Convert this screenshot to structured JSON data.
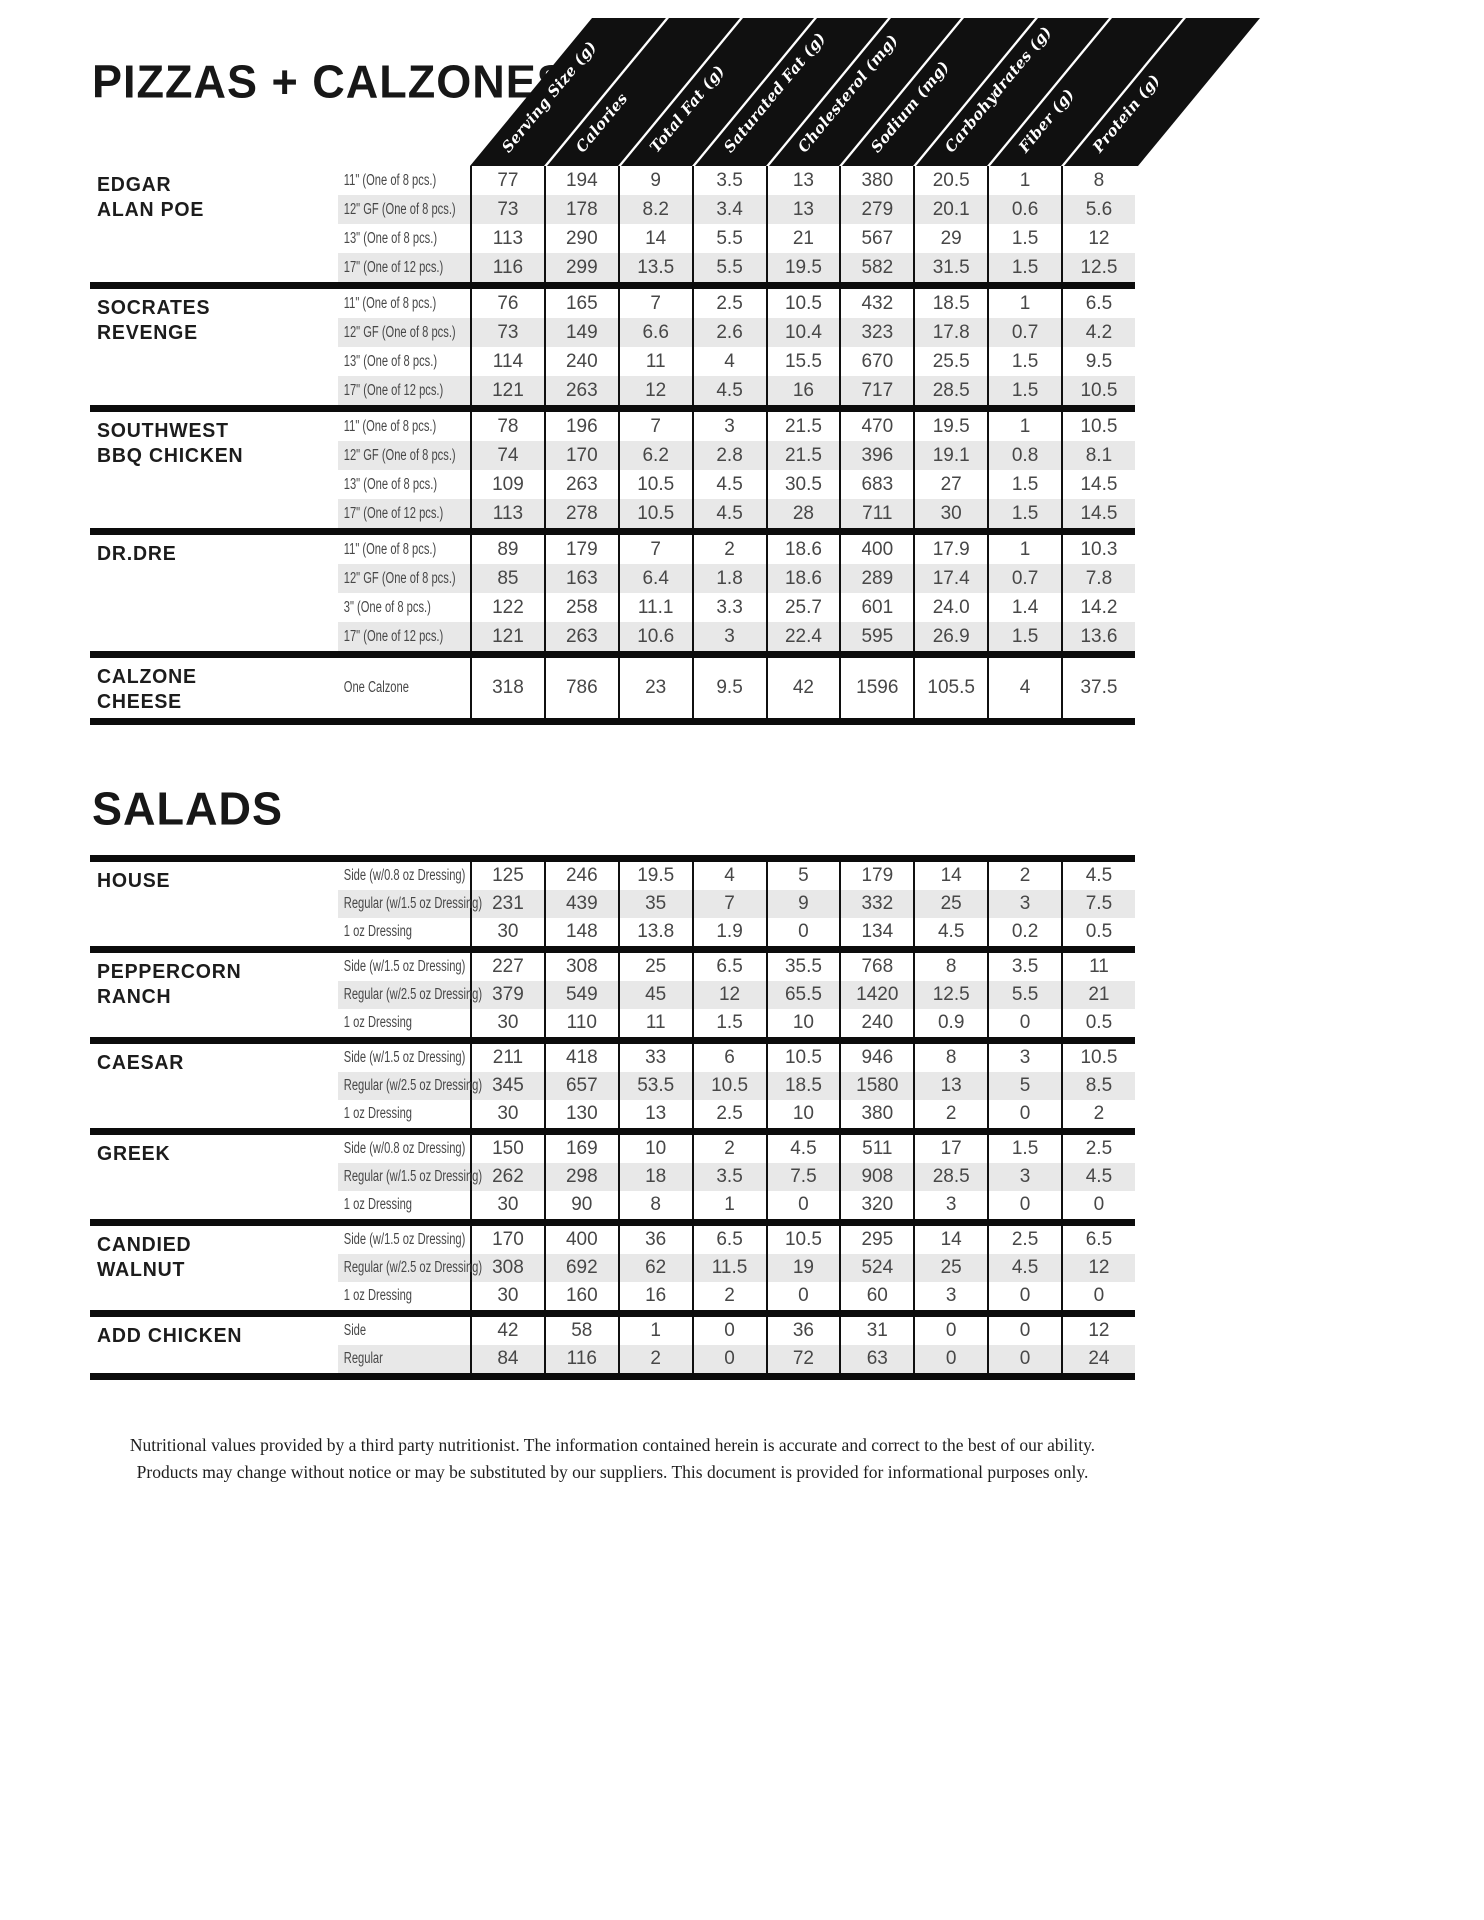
{
  "pizzas": {
    "title": "PIZZAS + CALZONES",
    "columns": [
      "Serving Size (g)",
      "Calories",
      "Total Fat (g)",
      "Saturated Fat (g)",
      "Cholesterol (mg)",
      "Sodium (mg)",
      "Carbohydrates (g)",
      "Fiber (g)",
      "Protein (g)"
    ],
    "groups": [
      {
        "name": "EDGAR\nALAN POE",
        "rows": [
          {
            "label": "11\" (One of 8 pcs.)",
            "values": [
              "77",
              "194",
              "9",
              "3.5",
              "13",
              "380",
              "20.5",
              "1",
              "8"
            ]
          },
          {
            "label": "12\" GF (One of 8 pcs.)",
            "values": [
              "73",
              "178",
              "8.2",
              "3.4",
              "13",
              "279",
              "20.1",
              "0.6",
              "5.6"
            ]
          },
          {
            "label": "13\" (One of 8 pcs.)",
            "values": [
              "113",
              "290",
              "14",
              "5.5",
              "21",
              "567",
              "29",
              "1.5",
              "12"
            ]
          },
          {
            "label": "17\" (One of 12 pcs.)",
            "values": [
              "116",
              "299",
              "13.5",
              "5.5",
              "19.5",
              "582",
              "31.5",
              "1.5",
              "12.5"
            ]
          }
        ]
      },
      {
        "name": "SOCRATES\nREVENGE",
        "rows": [
          {
            "label": "11\" (One of 8 pcs.)",
            "values": [
              "76",
              "165",
              "7",
              "2.5",
              "10.5",
              "432",
              "18.5",
              "1",
              "6.5"
            ]
          },
          {
            "label": "12\" GF (One of 8 pcs.)",
            "values": [
              "73",
              "149",
              "6.6",
              "2.6",
              "10.4",
              "323",
              "17.8",
              "0.7",
              "4.2"
            ]
          },
          {
            "label": "13\" (One of 8 pcs.)",
            "values": [
              "114",
              "240",
              "11",
              "4",
              "15.5",
              "670",
              "25.5",
              "1.5",
              "9.5"
            ]
          },
          {
            "label": "17\" (One of 12 pcs.)",
            "values": [
              "121",
              "263",
              "12",
              "4.5",
              "16",
              "717",
              "28.5",
              "1.5",
              "10.5"
            ]
          }
        ]
      },
      {
        "name": "SOUTHWEST\nBBQ CHICKEN",
        "rows": [
          {
            "label": "11\" (One of 8 pcs.)",
            "values": [
              "78",
              "196",
              "7",
              "3",
              "21.5",
              "470",
              "19.5",
              "1",
              "10.5"
            ]
          },
          {
            "label": "12\" GF (One of 8 pcs.)",
            "values": [
              "74",
              "170",
              "6.2",
              "2.8",
              "21.5",
              "396",
              "19.1",
              "0.8",
              "8.1"
            ]
          },
          {
            "label": "13\" (One of 8 pcs.)",
            "values": [
              "109",
              "263",
              "10.5",
              "4.5",
              "30.5",
              "683",
              "27",
              "1.5",
              "14.5"
            ]
          },
          {
            "label": "17\" (One of 12 pcs.)",
            "values": [
              "113",
              "278",
              "10.5",
              "4.5",
              "28",
              "711",
              "30",
              "1.5",
              "14.5"
            ]
          }
        ]
      },
      {
        "name": "DR.DRE",
        "rows": [
          {
            "label": "11\" (One of 8 pcs.)",
            "values": [
              "89",
              "179",
              "7",
              "2",
              "18.6",
              "400",
              "17.9",
              "1",
              "10.3"
            ]
          },
          {
            "label": "12\" GF (One of 8 pcs.)",
            "values": [
              "85",
              "163",
              "6.4",
              "1.8",
              "18.6",
              "289",
              "17.4",
              "0.7",
              "7.8"
            ]
          },
          {
            "label": "3\" (One of 8 pcs.)",
            "values": [
              "122",
              "258",
              "11.1",
              "3.3",
              "25.7",
              "601",
              "24.0",
              "1.4",
              "14.2"
            ]
          },
          {
            "label": "17\" (One of 12 pcs.)",
            "values": [
              "121",
              "263",
              "10.6",
              "3",
              "22.4",
              "595",
              "26.9",
              "1.5",
              "13.6"
            ]
          }
        ]
      },
      {
        "name": "CALZONE\nCHEESE",
        "rows": [
          {
            "label": "One Calzone",
            "tall": true,
            "values": [
              "318",
              "786",
              "23",
              "9.5",
              "42",
              "1596",
              "105.5",
              "4",
              "37.5"
            ]
          }
        ]
      }
    ]
  },
  "salads": {
    "title": "SALADS",
    "groups": [
      {
        "name": "HOUSE",
        "rows": [
          {
            "label": "Side (w/0.8 oz Dressing)",
            "values": [
              "125",
              "246",
              "19.5",
              "4",
              "5",
              "179",
              "14",
              "2",
              "4.5"
            ]
          },
          {
            "label": "Regular (w/1.5 oz Dressing)",
            "values": [
              "231",
              "439",
              "35",
              "7",
              "9",
              "332",
              "25",
              "3",
              "7.5"
            ]
          },
          {
            "label": "1 oz Dressing",
            "values": [
              "30",
              "148",
              "13.8",
              "1.9",
              "0",
              "134",
              "4.5",
              "0.2",
              "0.5"
            ]
          }
        ]
      },
      {
        "name": "PEPPERCORN\nRANCH",
        "rows": [
          {
            "label": "Side (w/1.5 oz Dressing)",
            "values": [
              "227",
              "308",
              "25",
              "6.5",
              "35.5",
              "768",
              "8",
              "3.5",
              "11"
            ]
          },
          {
            "label": "Regular (w/2.5 oz Dressing)",
            "values": [
              "379",
              "549",
              "45",
              "12",
              "65.5",
              "1420",
              "12.5",
              "5.5",
              "21"
            ]
          },
          {
            "label": "1 oz Dressing",
            "values": [
              "30",
              "110",
              "11",
              "1.5",
              "10",
              "240",
              "0.9",
              "0",
              "0.5"
            ]
          }
        ]
      },
      {
        "name": "CAESAR",
        "rows": [
          {
            "label": "Side (w/1.5 oz Dressing)",
            "values": [
              "211",
              "418",
              "33",
              "6",
              "10.5",
              "946",
              "8",
              "3",
              "10.5"
            ]
          },
          {
            "label": "Regular (w/2.5 oz Dressing)",
            "values": [
              "345",
              "657",
              "53.5",
              "10.5",
              "18.5",
              "1580",
              "13",
              "5",
              "8.5"
            ]
          },
          {
            "label": "1 oz Dressing",
            "values": [
              "30",
              "130",
              "13",
              "2.5",
              "10",
              "380",
              "2",
              "0",
              "2"
            ]
          }
        ]
      },
      {
        "name": "GREEK",
        "rows": [
          {
            "label": "Side (w/0.8 oz Dressing)",
            "values": [
              "150",
              "169",
              "10",
              "2",
              "4.5",
              "511",
              "17",
              "1.5",
              "2.5"
            ]
          },
          {
            "label": "Regular (w/1.5 oz Dressing)",
            "values": [
              "262",
              "298",
              "18",
              "3.5",
              "7.5",
              "908",
              "28.5",
              "3",
              "4.5"
            ]
          },
          {
            "label": "1 oz Dressing",
            "values": [
              "30",
              "90",
              "8",
              "1",
              "0",
              "320",
              "3",
              "0",
              "0"
            ]
          }
        ]
      },
      {
        "name": "CANDIED\nWALNUT",
        "rows": [
          {
            "label": "Side (w/1.5 oz Dressing)",
            "values": [
              "170",
              "400",
              "36",
              "6.5",
              "10.5",
              "295",
              "14",
              "2.5",
              "6.5"
            ]
          },
          {
            "label": "Regular (w/2.5 oz Dressing)",
            "values": [
              "308",
              "692",
              "62",
              "11.5",
              "19",
              "524",
              "25",
              "4.5",
              "12"
            ]
          },
          {
            "label": "1 oz Dressing",
            "values": [
              "30",
              "160",
              "16",
              "2",
              "0",
              "60",
              "3",
              "0",
              "0"
            ]
          }
        ]
      },
      {
        "name": "ADD CHICKEN",
        "rows": [
          {
            "label": "Side",
            "values": [
              "42",
              "58",
              "1",
              "0",
              "36",
              "31",
              "0",
              "0",
              "12"
            ]
          },
          {
            "label": "Regular",
            "values": [
              "84",
              "116",
              "2",
              "0",
              "72",
              "63",
              "0",
              "0",
              "24"
            ]
          }
        ]
      }
    ]
  },
  "footer": {
    "line1": "Nutritional values provided by a third party nutritionist. The information contained herein is accurate and correct to the best of our ability.",
    "line2": "Products may change without notice or may be substituted by our suppliers. This document is provided for informational purposes only."
  },
  "colors": {
    "ink": "#0c0c0c",
    "stripe": "#e8e8e8",
    "value_text": "#474747",
    "header_band": "#101010",
    "header_text": "#ffffff"
  }
}
